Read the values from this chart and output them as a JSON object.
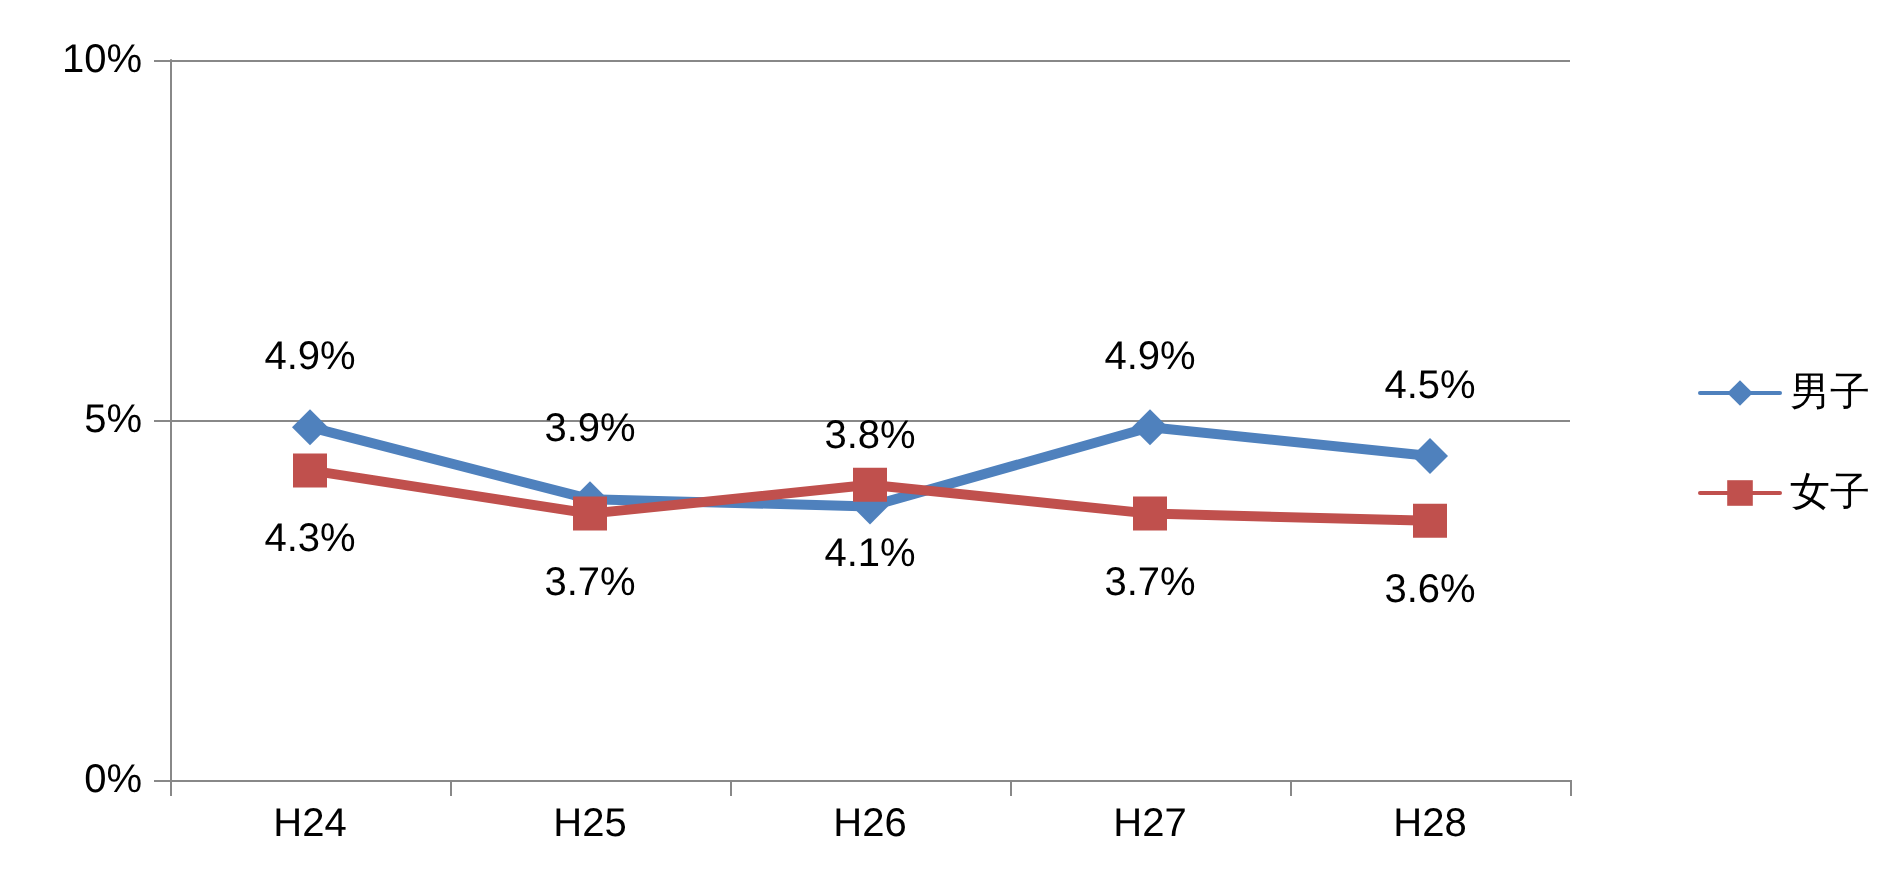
{
  "chart_data": {
    "type": "line",
    "categories": [
      "H24",
      "H25",
      "H26",
      "H27",
      "H28"
    ],
    "ylim": [
      0,
      10
    ],
    "yticks": [
      {
        "value": 0,
        "label": "0%"
      },
      {
        "value": 5,
        "label": "5%"
      },
      {
        "value": 10,
        "label": "10%"
      }
    ],
    "grid": "y",
    "legend": "right",
    "line_style": "solid",
    "series": [
      {
        "name": "男子",
        "color": "#4f81bd",
        "marker": "diamond",
        "values": [
          4.9,
          3.9,
          3.8,
          4.9,
          4.5
        ],
        "value_labels": [
          "4.9%",
          "3.9%",
          "3.8%",
          "4.9%",
          "4.5%"
        ]
      },
      {
        "name": "女子",
        "color": "#c0504d",
        "marker": "square",
        "values": [
          4.3,
          3.7,
          4.1,
          3.7,
          3.6
        ],
        "value_labels": [
          "4.3%",
          "3.7%",
          "4.1%",
          "3.7%",
          "3.6%"
        ]
      }
    ]
  }
}
